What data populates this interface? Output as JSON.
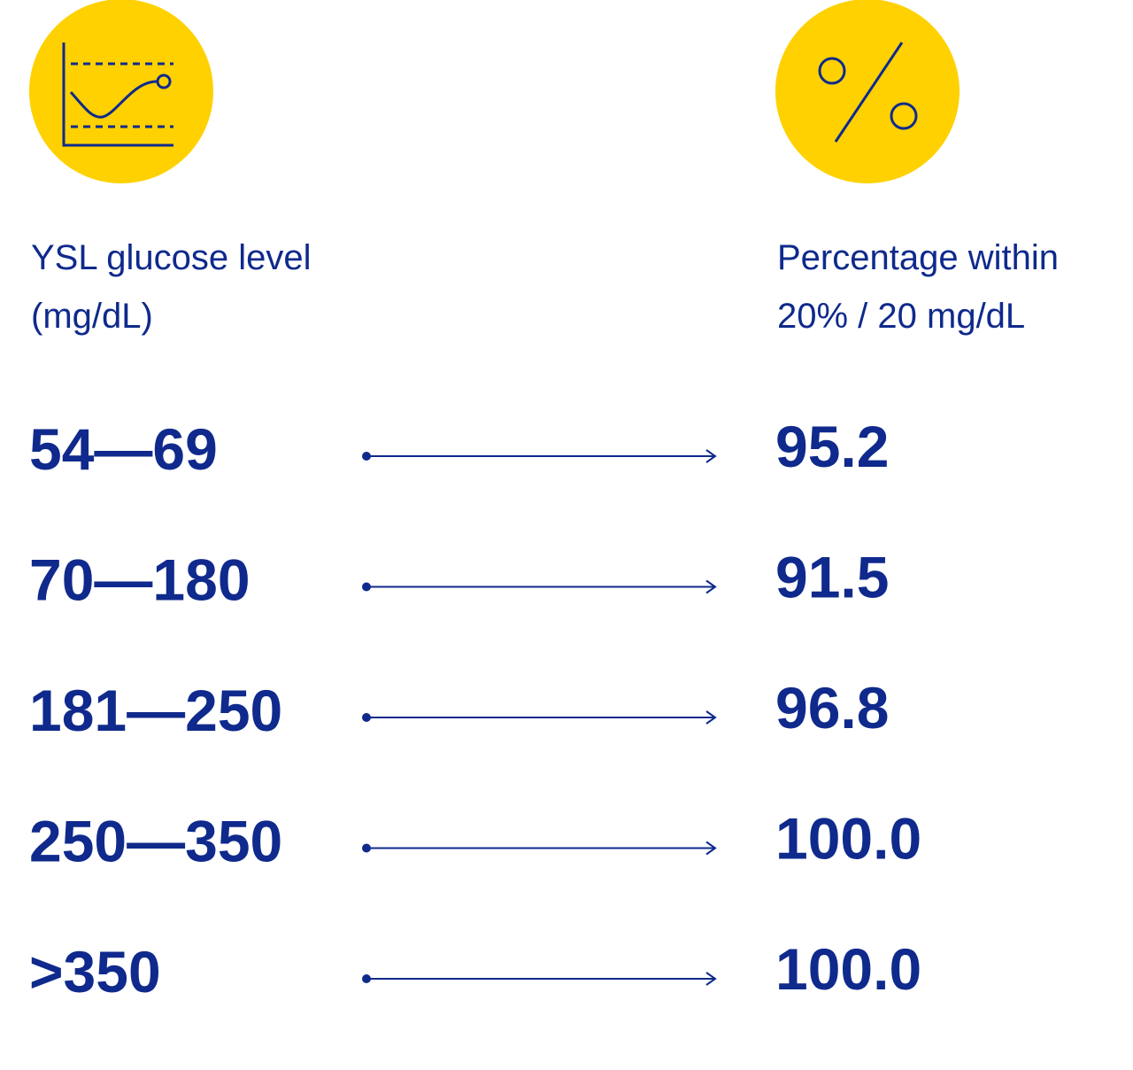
{
  "header": {
    "left": [
      "YSL glucose level",
      "(mg/dL)"
    ],
    "right": [
      "Percentage within",
      "20% / 20 mg/dL"
    ]
  },
  "rows": [
    [
      "54—69",
      "95.2"
    ],
    [
      "70—180",
      "91.5"
    ],
    [
      "181—250",
      "96.8"
    ],
    [
      "250—350",
      "100.0"
    ],
    [
      ">350",
      "100.0"
    ]
  ]
}
